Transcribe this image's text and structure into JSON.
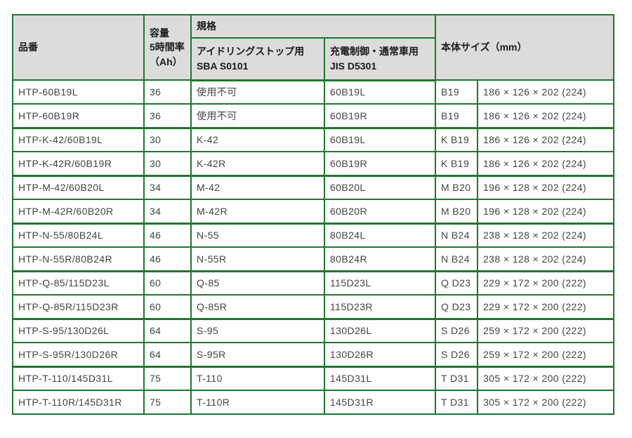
{
  "colors": {
    "border_green": "#1e772c",
    "header_bg": "#dcdcdc",
    "header_text": "#1a1a1a",
    "body_text": "#444444",
    "page_bg": "#ffffff"
  },
  "table": {
    "header": {
      "part_number": "品番",
      "capacity_line1": "容量",
      "capacity_line2": "5時間率",
      "capacity_line3": "（Ah）",
      "spec_group": "規格",
      "spec_idling_line1": "アイドリングストップ用",
      "spec_idling_line2": "SBA S0101",
      "spec_normal_line1": "充電制御・通常車用",
      "spec_normal_line2": "JIS D5301",
      "body_size": "本体サイズ（mm）"
    },
    "rows": [
      {
        "part_number": "HTP-60B19L",
        "capacity": "36",
        "spec_idling": "使用不可",
        "spec_normal": "60B19L",
        "size_code": "B19",
        "dimensions": "186 × 126 × 202 (224)"
      },
      {
        "part_number": "HTP-60B19R",
        "capacity": "36",
        "spec_idling": "使用不可",
        "spec_normal": "60B19R",
        "size_code": "B19",
        "dimensions": "186 × 126 × 202 (224)"
      },
      {
        "part_number": "HTP-K-42/60B19L",
        "capacity": "30",
        "spec_idling": "K-42",
        "spec_normal": "60B19L",
        "size_code": "K B19",
        "dimensions": "186 × 126 × 202 (224)"
      },
      {
        "part_number": "HTP-K-42R/60B19R",
        "capacity": "30",
        "spec_idling": "K-42R",
        "spec_normal": "60B19R",
        "size_code": "K B19",
        "dimensions": "186 × 126 × 202 (224)"
      },
      {
        "part_number": "HTP-M-42/60B20L",
        "capacity": "34",
        "spec_idling": "M-42",
        "spec_normal": "60B20L",
        "size_code": "M B20",
        "dimensions": "196 × 128 × 202 (224)"
      },
      {
        "part_number": "HTP-M-42R/60B20R",
        "capacity": "34",
        "spec_idling": "M-42R",
        "spec_normal": "60B20R",
        "size_code": "M B20",
        "dimensions": "196 × 128 × 202 (224)"
      },
      {
        "part_number": "HTP-N-55/80B24L",
        "capacity": "46",
        "spec_idling": "N-55",
        "spec_normal": "80B24L",
        "size_code": "N B24",
        "dimensions": "238 × 128 × 202 (224)"
      },
      {
        "part_number": "HTP-N-55R/80B24R",
        "capacity": "46",
        "spec_idling": "N-55R",
        "spec_normal": "80B24R",
        "size_code": "N B24",
        "dimensions": "238 × 128 × 202 (224)"
      },
      {
        "part_number": "HTP-Q-85/115D23L",
        "capacity": "60",
        "spec_idling": "Q-85",
        "spec_normal": "115D23L",
        "size_code": "Q D23",
        "dimensions": "229 × 172 × 200 (222)"
      },
      {
        "part_number": "HTP-Q-85R/115D23R",
        "capacity": "60",
        "spec_idling": "Q-85R",
        "spec_normal": "115D23R",
        "size_code": "Q D23",
        "dimensions": "229 × 172 × 200 (222)"
      },
      {
        "part_number": "HTP-S-95/130D26L",
        "capacity": "64",
        "spec_idling": "S-95",
        "spec_normal": "130D26L",
        "size_code": "S D26",
        "dimensions": "259 × 172 × 200 (222)"
      },
      {
        "part_number": "HTP-S-95R/130D26R",
        "capacity": "64",
        "spec_idling": "S-95R",
        "spec_normal": "130D26R",
        "size_code": "S D26",
        "dimensions": "259 × 172 × 200 (222)"
      },
      {
        "part_number": "HTP-T-110/145D31L",
        "capacity": "75",
        "spec_idling": "T-110",
        "spec_normal": "145D31L",
        "size_code": "T D31",
        "dimensions": "305 × 172 × 200 (222)"
      },
      {
        "part_number": "HTP-T-110R/145D31R",
        "capacity": "75",
        "spec_idling": "T-110R",
        "spec_normal": "145D31R",
        "size_code": "T D31",
        "dimensions": "305 × 172 × 200 (222)"
      }
    ]
  }
}
